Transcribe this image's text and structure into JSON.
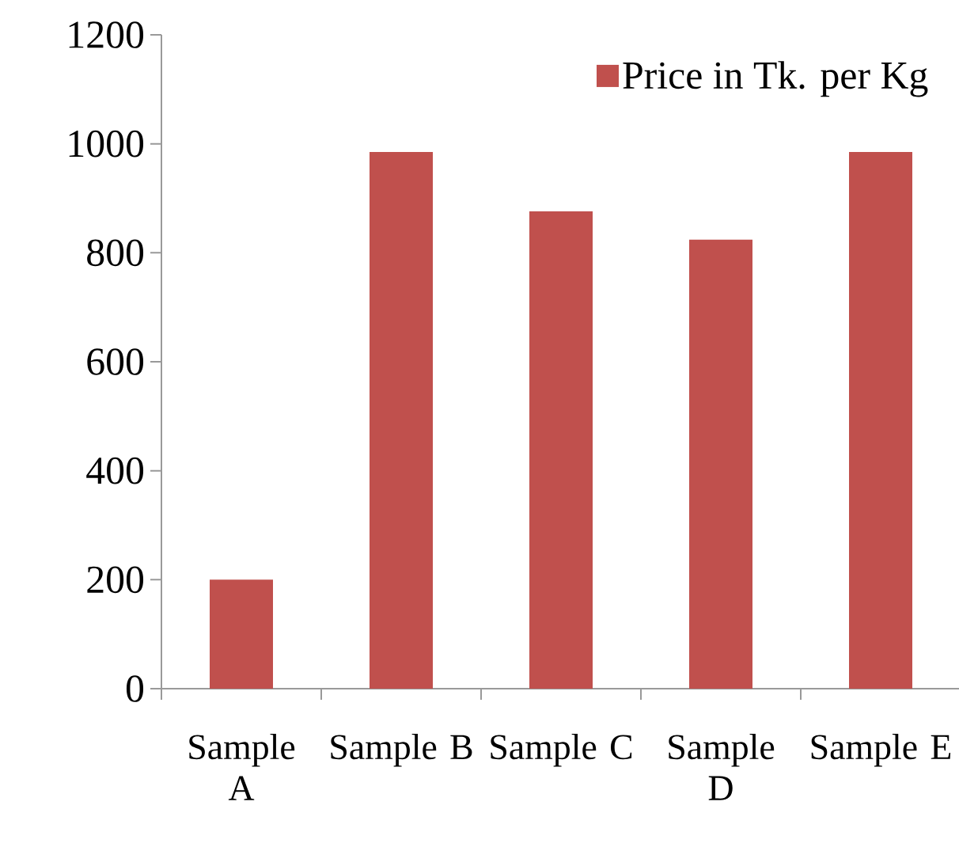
{
  "chart_data": {
    "type": "bar",
    "categories": [
      "Sample A",
      "Sample B",
      "Sample C",
      "Sample D",
      "Sample E"
    ],
    "series": [
      {
        "name": "Price in Tk. per Kg",
        "color": "#c0504d",
        "values": [
          200,
          985,
          876,
          824,
          985
        ]
      }
    ],
    "ylim": [
      0,
      1200
    ],
    "yticks": [
      0,
      200,
      400,
      600,
      800,
      1000,
      1200
    ],
    "grid": false,
    "legend": "top right"
  }
}
